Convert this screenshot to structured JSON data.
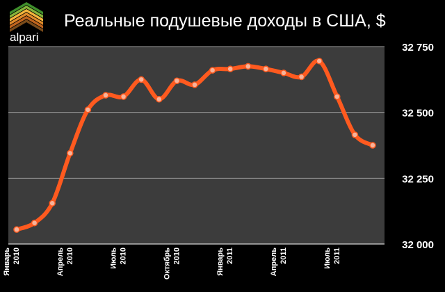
{
  "brand": {
    "logo_text": "alpari",
    "logo_colors": [
      "#7a4b1a",
      "#c0651e",
      "#e08a2a",
      "#f3b43c",
      "#86b43a",
      "#3f8f2c"
    ]
  },
  "colors": {
    "background": "#000000",
    "plot_background": "#3c3c3c",
    "gridline": "#9a9a9a",
    "line": "#ff5a1f",
    "marker_fill": "#f7b39a",
    "marker_stroke": "#ff5a1f"
  },
  "chart_data": {
    "type": "line",
    "title": "Реальные подушевые доходы в США, $",
    "xlabel": "",
    "ylabel": "",
    "ylim": [
      32000,
      32750
    ],
    "y_ticks": [
      {
        "value": 32000,
        "label": "32 000"
      },
      {
        "value": 32250,
        "label": "32 250"
      },
      {
        "value": 32500,
        "label": "32 500"
      },
      {
        "value": 32750,
        "label": "32 750"
      }
    ],
    "grid": true,
    "x_tick_labels": [
      {
        "index": 0,
        "lines": [
          "Январь",
          "2010"
        ]
      },
      {
        "index": 3,
        "lines": [
          "Апрель",
          "2010"
        ]
      },
      {
        "index": 6,
        "lines": [
          "Июль",
          "2010"
        ]
      },
      {
        "index": 9,
        "lines": [
          "Октябрь",
          "2010"
        ]
      },
      {
        "index": 12,
        "lines": [
          "Январь",
          "2011"
        ]
      },
      {
        "index": 15,
        "lines": [
          "Апрель",
          "2011"
        ]
      },
      {
        "index": 18,
        "lines": [
          "Июль",
          "2011"
        ]
      }
    ],
    "x": [
      "2010-01",
      "2010-02",
      "2010-03",
      "2010-04",
      "2010-05",
      "2010-06",
      "2010-07",
      "2010-08",
      "2010-09",
      "2010-10",
      "2010-11",
      "2010-12",
      "2011-01",
      "2011-02",
      "2011-03",
      "2011-04",
      "2011-05",
      "2011-06",
      "2011-07",
      "2011-08",
      "2011-09"
    ],
    "series": [
      {
        "values": [
          32055,
          32080,
          32155,
          32345,
          32510,
          32565,
          32560,
          32625,
          32550,
          32620,
          32605,
          32660,
          32665,
          32675,
          32665,
          32650,
          32635,
          32695,
          32560,
          32415,
          32375
        ]
      }
    ]
  }
}
